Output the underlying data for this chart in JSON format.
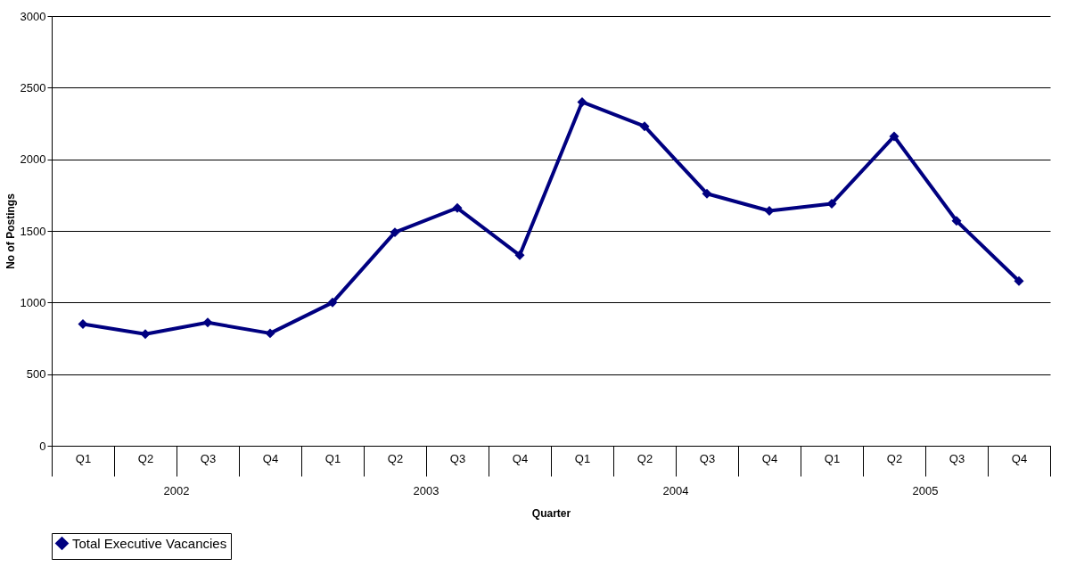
{
  "chart_data": {
    "type": "line",
    "xlabel": "Quarter",
    "ylabel": "No of Postings",
    "categories": [
      "Q1",
      "Q2",
      "Q3",
      "Q4",
      "Q1",
      "Q2",
      "Q3",
      "Q4",
      "Q1",
      "Q2",
      "Q3",
      "Q4",
      "Q1",
      "Q2",
      "Q3",
      "Q4"
    ],
    "series": [
      {
        "name": "Total Executive Vacancies",
        "color": "#000080",
        "values": [
          850,
          780,
          860,
          785,
          1000,
          1490,
          1660,
          1330,
          2400,
          2230,
          1760,
          1640,
          1690,
          2160,
          1570,
          1150
        ]
      }
    ],
    "annotations": [
      "2002",
      "2003",
      "2004",
      "2005"
    ],
    "ylim": [
      0,
      3000
    ],
    "yticks": [
      0,
      500,
      1000,
      1500,
      2000,
      2500,
      3000
    ],
    "grid": "y",
    "legend": "bottom",
    "marker": "diamond",
    "line_style": "solid"
  }
}
